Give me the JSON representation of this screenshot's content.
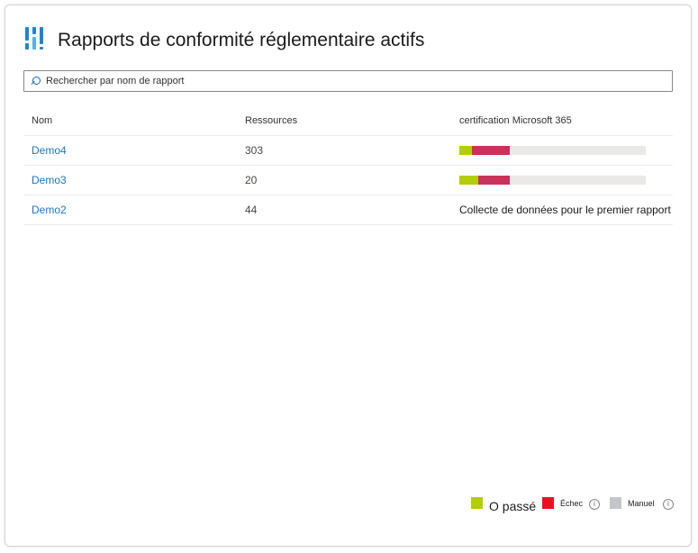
{
  "header": {
    "title": "Rapports de conformité réglementaire actifs",
    "icon": "compliance-bars-icon"
  },
  "search": {
    "placeholder": "Rechercher par nom de rapport",
    "value": ""
  },
  "table": {
    "columns": [
      "Nom",
      "Ressources",
      "certification Microsoft 365"
    ],
    "rows": [
      {
        "name": "Demo4",
        "resources": "303",
        "status": {
          "type": "bar",
          "passed": 0.07,
          "failed": 0.2
        }
      },
      {
        "name": "Demo3",
        "resources": "20",
        "status": {
          "type": "bar",
          "passed": 0.1,
          "failed": 0.17
        }
      },
      {
        "name": "Demo2",
        "resources": "44",
        "status": {
          "type": "text",
          "text": "Collecte de données pour le premier rapport"
        }
      }
    ]
  },
  "legend": {
    "passed": {
      "label": "O passé",
      "color": "#b3cc0c"
    },
    "failed": {
      "label": "Échec",
      "color": "#e81123"
    },
    "manual": {
      "label": "Manuel",
      "color": "#c3c5c9"
    }
  },
  "colors": {
    "accent": "#1b78c3",
    "bar_pass": "#b3cc0c",
    "bar_fail": "#c8325b",
    "bar_track": "#ebe9e7"
  }
}
